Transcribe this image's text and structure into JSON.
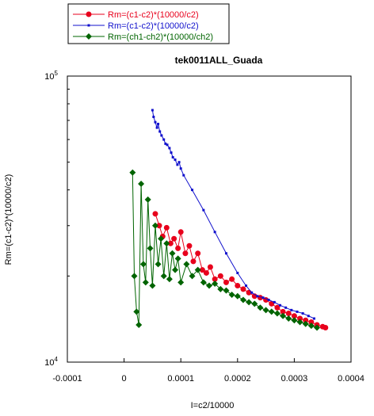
{
  "chart_data": {
    "type": "scatter",
    "title": "tek0011ALL_Guada",
    "xlabel": "I=c2/10000",
    "ylabel": "Rm=(c1-c2)*(10000/c2)",
    "xlim": [
      -0.0001,
      0.0004
    ],
    "ylim": [
      10000,
      100000
    ],
    "y_scale": "log",
    "x_ticks": [
      -0.0001,
      0,
      0.0001,
      0.0002,
      0.0003,
      0.0004
    ],
    "x_tick_labels": [
      "-0.0001",
      "0",
      "0.0001",
      "0.0002",
      "0.0003",
      "0.0004"
    ],
    "y_ticks": [
      10000,
      100000
    ],
    "y_tick_labels": [
      {
        "base": "10",
        "exp": "4"
      },
      {
        "base": "10",
        "exp": "5"
      }
    ],
    "grid": false,
    "legend_position": "top-left",
    "series": [
      {
        "name": "Rm=(c1-c2)*(10000/c2)",
        "color": "#e8001c",
        "marker": "circle",
        "x": [
          5.5e-05,
          6.2e-05,
          6.8e-05,
          7.5e-05,
          8.2e-05,
          8.8e-05,
          9.5e-05,
          0.0001,
          0.000108,
          0.000115,
          0.000122,
          0.00013,
          0.000138,
          0.000145,
          0.000152,
          0.00016,
          0.00017,
          0.00018,
          0.00019,
          0.0002,
          0.00021,
          0.00022,
          0.00023,
          0.00024,
          0.00025,
          0.00026,
          0.00027,
          0.00028,
          0.00029,
          0.0003,
          0.00031,
          0.00032,
          0.00033,
          0.00034,
          0.00035,
          0.000355
        ],
        "y": [
          33000,
          30000,
          27500,
          29500,
          26000,
          27000,
          25000,
          28500,
          24000,
          25500,
          22500,
          24000,
          21000,
          20500,
          21500,
          19500,
          20000,
          19000,
          19500,
          18500,
          18000,
          17500,
          17000,
          16800,
          16500,
          16000,
          15500,
          15000,
          14800,
          14500,
          14200,
          14000,
          13800,
          13500,
          13300,
          13200
        ]
      },
      {
        "name": "Rm=(c1-c2)*(10000/c2)",
        "color": "#1010cc",
        "marker": "square",
        "x": [
          5e-05,
          5.2e-05,
          5.5e-05,
          5.8e-05,
          6e-05,
          6.3e-05,
          6.6e-05,
          7e-05,
          7.3e-05,
          7.6e-05,
          8e-05,
          8.3e-05,
          8.6e-05,
          9e-05,
          9.4e-05,
          9.7e-05,
          0.0001,
          0.000105,
          0.00012,
          0.00014,
          0.00016,
          0.00018,
          0.0002,
          0.000215,
          0.000225,
          0.000235,
          0.000245,
          0.000255,
          0.000265,
          0.000275,
          0.000285,
          0.000295,
          0.000305,
          0.000315,
          0.000325,
          0.000335
        ],
        "y": [
          76000,
          72000,
          69000,
          66000,
          68000,
          64000,
          62000,
          60000,
          58000,
          57500,
          56000,
          54000,
          52000,
          51000,
          49000,
          50000,
          47500,
          45000,
          40000,
          34000,
          28500,
          24000,
          20500,
          18500,
          17500,
          17000,
          16800,
          16500,
          16200,
          15800,
          15500,
          15200,
          15000,
          14800,
          14500,
          14200
        ]
      },
      {
        "name": "Rm=(ch1-ch2)*(10000/ch2)",
        "color": "#006400",
        "marker": "diamond",
        "x": [
          1.5e-05,
          1.8e-05,
          2.2e-05,
          2.6e-05,
          3e-05,
          3.4e-05,
          3.8e-05,
          4.2e-05,
          4.6e-05,
          5e-05,
          5.5e-05,
          6e-05,
          6.5e-05,
          7e-05,
          7.5e-05,
          8e-05,
          8.5e-05,
          9e-05,
          9.5e-05,
          0.0001,
          0.00011,
          0.00012,
          0.00013,
          0.00014,
          0.00015,
          0.00016,
          0.00017,
          0.00018,
          0.00019,
          0.0002,
          0.00021,
          0.00022,
          0.00023,
          0.00024,
          0.00025,
          0.00026,
          0.00027,
          0.00028,
          0.00029,
          0.0003,
          0.00031,
          0.00032,
          0.00033,
          0.00034
        ],
        "y": [
          46000,
          20000,
          15000,
          13500,
          42000,
          22000,
          19000,
          37000,
          25000,
          18500,
          30000,
          22000,
          27000,
          20000,
          26000,
          19500,
          24000,
          21000,
          23000,
          19000,
          22000,
          20000,
          21000,
          19000,
          18500,
          18800,
          18000,
          17800,
          17200,
          17000,
          16500,
          16200,
          16000,
          15500,
          15200,
          15000,
          14800,
          14500,
          14200,
          14000,
          13800,
          13600,
          13400,
          13200
        ]
      }
    ]
  }
}
